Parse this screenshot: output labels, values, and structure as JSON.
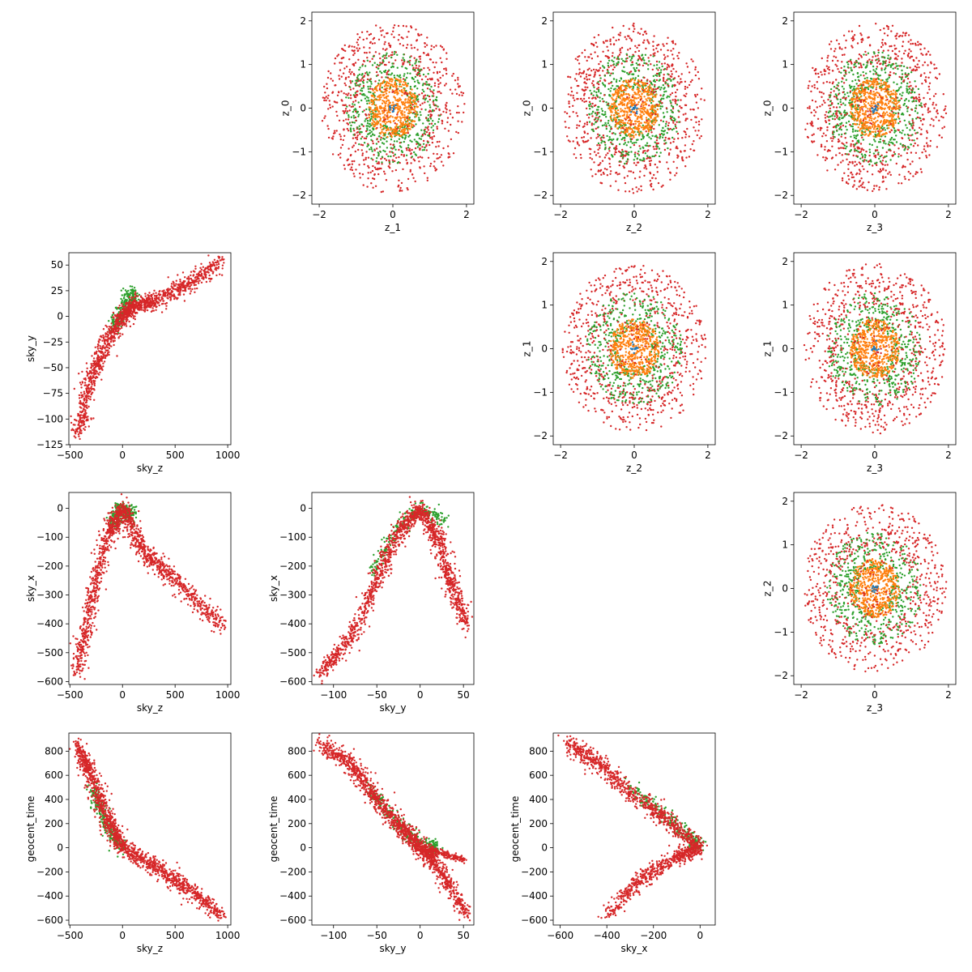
{
  "chart_data": [
    {
      "type": "scatter",
      "name": "z_0-vs-z_1",
      "xlabel": "z_1",
      "ylabel": "z_0",
      "xlim": [
        -2.2,
        2.2
      ],
      "ylim": [
        -2.2,
        2.2
      ],
      "xticks": [
        -2,
        0,
        2
      ],
      "yticks": [
        -2,
        -1,
        0,
        1,
        2
      ],
      "shape": "rings",
      "series_colors": [
        "#d62728",
        "#2ca02c",
        "#ff7f0e",
        "#1f77b4"
      ]
    },
    {
      "type": "scatter",
      "name": "z_0-vs-z_2",
      "xlabel": "z_2",
      "ylabel": "z_0",
      "xlim": [
        -2.2,
        2.2
      ],
      "ylim": [
        -2.2,
        2.2
      ],
      "xticks": [
        -2,
        0,
        2
      ],
      "yticks": [
        -2,
        -1,
        0,
        1,
        2
      ],
      "shape": "rings",
      "series_colors": [
        "#d62728",
        "#2ca02c",
        "#ff7f0e",
        "#1f77b4"
      ]
    },
    {
      "type": "scatter",
      "name": "z_0-vs-z_3",
      "xlabel": "z_3",
      "ylabel": "z_0",
      "xlim": [
        -2.2,
        2.2
      ],
      "ylim": [
        -2.2,
        2.2
      ],
      "xticks": [
        -2,
        0,
        2
      ],
      "yticks": [
        -2,
        -1,
        0,
        1,
        2
      ],
      "shape": "rings",
      "series_colors": [
        "#d62728",
        "#2ca02c",
        "#ff7f0e",
        "#1f77b4"
      ]
    },
    {
      "type": "scatter",
      "name": "z_1-vs-z_2",
      "xlabel": "z_2",
      "ylabel": "z_1",
      "xlim": [
        -2.2,
        2.2
      ],
      "ylim": [
        -2.2,
        2.2
      ],
      "xticks": [
        -2,
        0,
        2
      ],
      "yticks": [
        -2,
        -1,
        0,
        1,
        2
      ],
      "shape": "rings",
      "series_colors": [
        "#d62728",
        "#2ca02c",
        "#ff7f0e",
        "#1f77b4"
      ]
    },
    {
      "type": "scatter",
      "name": "z_1-vs-z_3",
      "xlabel": "z_3",
      "ylabel": "z_1",
      "xlim": [
        -2.2,
        2.2
      ],
      "ylim": [
        -2.2,
        2.2
      ],
      "xticks": [
        -2,
        0,
        2
      ],
      "yticks": [
        -2,
        -1,
        0,
        1,
        2
      ],
      "shape": "rings",
      "series_colors": [
        "#d62728",
        "#2ca02c",
        "#ff7f0e",
        "#1f77b4"
      ]
    },
    {
      "type": "scatter",
      "name": "z_2-vs-z_3",
      "xlabel": "z_3",
      "ylabel": "z_2",
      "xlim": [
        -2.2,
        2.2
      ],
      "ylim": [
        -2.2,
        2.2
      ],
      "xticks": [
        -2,
        0,
        2
      ],
      "yticks": [
        -2,
        -1,
        0,
        1,
        2
      ],
      "shape": "rings",
      "series_colors": [
        "#d62728",
        "#2ca02c",
        "#ff7f0e",
        "#1f77b4"
      ]
    },
    {
      "type": "scatter",
      "name": "sky_y-vs-sky_z",
      "xlabel": "sky_z",
      "ylabel": "sky_y",
      "xlim": [
        -510,
        1030
      ],
      "ylim": [
        -125,
        62
      ],
      "xticks": [
        -500,
        0,
        500,
        1000
      ],
      "yticks": [
        -125,
        -100,
        -75,
        -50,
        -25,
        0,
        25,
        50
      ],
      "shape": "path",
      "path": [
        [
          -430,
          -115
        ],
        [
          -300,
          -60
        ],
        [
          -150,
          -25
        ],
        [
          0,
          0
        ],
        [
          100,
          10
        ],
        [
          300,
          15
        ],
        [
          600,
          30
        ],
        [
          950,
          55
        ]
      ],
      "green_path": [
        [
          -100,
          -10
        ],
        [
          0,
          5
        ],
        [
          60,
          18
        ],
        [
          100,
          22
        ]
      ],
      "series_colors": [
        "#d62728",
        "#2ca02c"
      ]
    },
    {
      "type": "scatter",
      "name": "sky_x-vs-sky_z",
      "xlabel": "sky_z",
      "ylabel": "sky_x",
      "xlim": [
        -510,
        1030
      ],
      "ylim": [
        -610,
        55
      ],
      "xticks": [
        -500,
        0,
        500,
        1000
      ],
      "yticks": [
        -600,
        -500,
        -400,
        -300,
        -200,
        -100,
        0
      ],
      "shape": "path",
      "path": [
        [
          -430,
          -570
        ],
        [
          -300,
          -330
        ],
        [
          -150,
          -100
        ],
        [
          0,
          0
        ],
        [
          200,
          -150
        ],
        [
          500,
          -250
        ],
        [
          950,
          -410
        ]
      ],
      "green_path": [
        [
          -100,
          -50
        ],
        [
          0,
          0
        ],
        [
          100,
          -30
        ]
      ],
      "series_colors": [
        "#d62728",
        "#2ca02c"
      ]
    },
    {
      "type": "scatter",
      "name": "sky_x-vs-sky_y",
      "xlabel": "sky_y",
      "ylabel": "sky_x",
      "xlim": [
        -125,
        62
      ],
      "ylim": [
        -610,
        55
      ],
      "xticks": [
        -100,
        -50,
        0,
        50
      ],
      "yticks": [
        -600,
        -500,
        -400,
        -300,
        -200,
        -100,
        0
      ],
      "shape": "path",
      "path": [
        [
          -115,
          -570
        ],
        [
          -80,
          -450
        ],
        [
          -50,
          -250
        ],
        [
          -25,
          -80
        ],
        [
          0,
          0
        ],
        [
          20,
          -100
        ],
        [
          35,
          -250
        ],
        [
          55,
          -410
        ]
      ],
      "green_path": [
        [
          -55,
          -220
        ],
        [
          -30,
          -80
        ],
        [
          0,
          0
        ],
        [
          30,
          -40
        ]
      ],
      "series_colors": [
        "#d62728",
        "#2ca02c"
      ]
    },
    {
      "type": "scatter",
      "name": "geocent_time-vs-sky_z",
      "xlabel": "sky_z",
      "ylabel": "geocent_time",
      "xlim": [
        -510,
        1030
      ],
      "ylim": [
        -640,
        950
      ],
      "xticks": [
        -500,
        0,
        500,
        1000
      ],
      "yticks": [
        -600,
        -400,
        -200,
        0,
        200,
        400,
        600,
        800
      ],
      "shape": "path",
      "path": [
        [
          -430,
          860
        ],
        [
          -300,
          600
        ],
        [
          -150,
          250
        ],
        [
          0,
          0
        ],
        [
          300,
          -150
        ],
        [
          600,
          -330
        ],
        [
          950,
          -560
        ]
      ],
      "green_path": [
        [
          -300,
          500
        ],
        [
          -150,
          200
        ],
        [
          0,
          -20
        ]
      ],
      "series_colors": [
        "#d62728",
        "#2ca02c"
      ]
    },
    {
      "type": "scatter",
      "name": "geocent_time-vs-sky_y",
      "xlabel": "sky_y",
      "ylabel": "geocent_time",
      "xlim": [
        -125,
        62
      ],
      "ylim": [
        -640,
        950
      ],
      "xticks": [
        -100,
        -50,
        0,
        50
      ],
      "yticks": [
        -600,
        -400,
        -200,
        0,
        200,
        400,
        600,
        800
      ],
      "shape": "path",
      "path": [
        [
          -115,
          850
        ],
        [
          -80,
          700
        ],
        [
          -50,
          400
        ],
        [
          -20,
          150
        ],
        [
          0,
          0
        ],
        [
          20,
          -150
        ],
        [
          55,
          -560
        ]
      ],
      "green_path": [
        [
          -60,
          500
        ],
        [
          -30,
          250
        ],
        [
          0,
          30
        ],
        [
          20,
          0
        ]
      ],
      "branch": [
        [
          0,
          0
        ],
        [
          25,
          -40
        ],
        [
          50,
          -100
        ]
      ],
      "series_colors": [
        "#d62728",
        "#2ca02c"
      ]
    },
    {
      "type": "scatter",
      "name": "geocent_time-vs-sky_x",
      "xlabel": "sky_x",
      "ylabel": "geocent_time",
      "xlim": [
        -630,
        65
      ],
      "ylim": [
        -640,
        950
      ],
      "xticks": [
        -600,
        -400,
        -200,
        0
      ],
      "yticks": [
        -600,
        -400,
        -200,
        0,
        200,
        400,
        600,
        800
      ],
      "shape": "path",
      "path": [
        [
          -570,
          860
        ],
        [
          -450,
          720
        ],
        [
          -300,
          450
        ],
        [
          -150,
          250
        ],
        [
          0,
          0
        ],
        [
          -100,
          -80
        ],
        [
          -250,
          -250
        ],
        [
          -400,
          -560
        ]
      ],
      "green_path": [
        [
          -300,
          500
        ],
        [
          -180,
          300
        ],
        [
          -50,
          100
        ],
        [
          0,
          10
        ]
      ],
      "series_colors": [
        "#d62728",
        "#2ca02c"
      ]
    }
  ]
}
